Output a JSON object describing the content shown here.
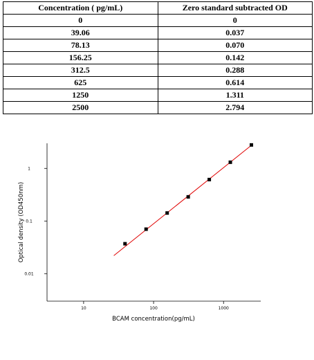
{
  "table": {
    "header": [
      "Concentration ( pg/mL)",
      "Zero standard subtracted OD"
    ],
    "rows": [
      [
        "0",
        "0"
      ],
      [
        "39.06",
        "0.037"
      ],
      [
        "78.13",
        "0.070"
      ],
      [
        "156.25",
        "0.142"
      ],
      [
        "312.5",
        "0.288"
      ],
      [
        "625",
        "0.614"
      ],
      [
        "1250",
        "1.311"
      ],
      [
        "2500",
        "2.794"
      ]
    ]
  },
  "chart_data": {
    "type": "scatter",
    "x_label": "BCAM concentration(pg/mL)",
    "y_label": "Optical density (OD450nm)",
    "x": [
      39.06,
      78.13,
      156.25,
      312.5,
      625,
      1250,
      2500
    ],
    "values": [
      0.037,
      0.07,
      0.142,
      0.288,
      0.614,
      1.311,
      2.794
    ],
    "color": "#000000",
    "fit": {
      "x": [
        27,
        2500
      ],
      "values": [
        0.022,
        2.75
      ],
      "color": "#e00000"
    },
    "xscale": "log",
    "yscale": "log",
    "xlim": [
      3,
      3400
    ],
    "ylim": [
      0.003,
      3
    ],
    "xticks": [
      10,
      100,
      1000
    ],
    "yticks": [
      0.01,
      0.1,
      1
    ]
  }
}
